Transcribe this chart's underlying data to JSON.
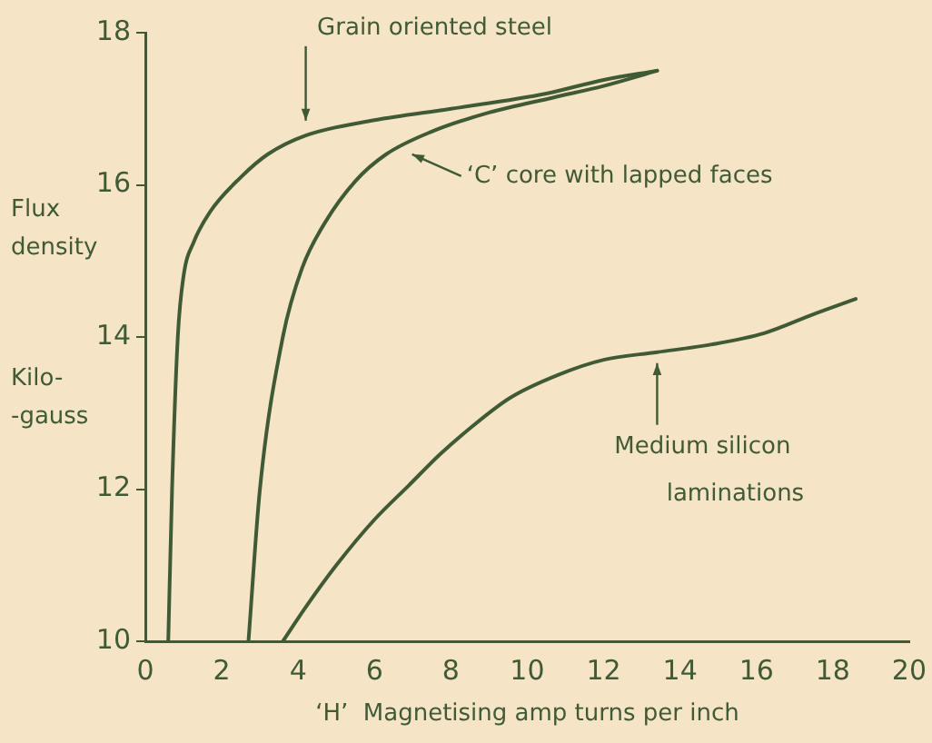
{
  "chart_data": {
    "type": "line",
    "xlabel": "‘H’  Magnetising amp turns per inch",
    "ylabel": "Flux density Kilo- -gauss",
    "xlim": [
      0,
      20
    ],
    "ylim": [
      10,
      18
    ],
    "xticks": [
      0,
      2,
      4,
      6,
      8,
      10,
      12,
      14,
      16,
      18,
      20
    ],
    "yticks": [
      10,
      12,
      14,
      16,
      18
    ],
    "grid": false,
    "legend": false,
    "marker": "none",
    "line_style": "solid",
    "series": [
      {
        "color": "#3f5a34",
        "x": [
          0.6,
          0.7,
          0.85,
          1.0,
          1.27,
          1.7,
          2.5,
          3.2,
          4.2,
          6,
          8,
          10.5,
          12,
          13.4
        ],
        "values": [
          10,
          12,
          14,
          14.8,
          15.25,
          15.65,
          16.1,
          16.4,
          16.65,
          16.85,
          17.0,
          17.2,
          17.38,
          17.5
        ]
      },
      {
        "color": "#3f5a34",
        "x": [
          2.7,
          3.0,
          3.6,
          4.1,
          4.7,
          5.5,
          6.3,
          7.5,
          9,
          10.7,
          12,
          13.4
        ],
        "values": [
          10,
          12,
          14,
          14.9,
          15.5,
          16.05,
          16.4,
          16.7,
          16.95,
          17.15,
          17.3,
          17.5
        ]
      },
      {
        "color": "#3f5a34",
        "x": [
          3.6,
          4.2,
          5.0,
          6.0,
          6.9,
          7.7,
          8.5,
          9.55,
          10.8,
          12,
          13.4,
          14.8,
          16.2,
          17.5,
          18.6
        ],
        "values": [
          10,
          10.45,
          11.0,
          11.6,
          12.05,
          12.45,
          12.8,
          13.2,
          13.5,
          13.7,
          13.8,
          13.9,
          14.05,
          14.3,
          14.5
        ]
      }
    ],
    "annotations": [
      {
        "text": "Grain oriented steel",
        "x": 4.2,
        "y": 16.7
      },
      {
        "text": "‘C’ core with lapped faces",
        "x": 6.7,
        "y": 16.45
      },
      {
        "text": "Medium silicon laminations",
        "x": 13.4,
        "y": 13.8
      }
    ]
  }
}
